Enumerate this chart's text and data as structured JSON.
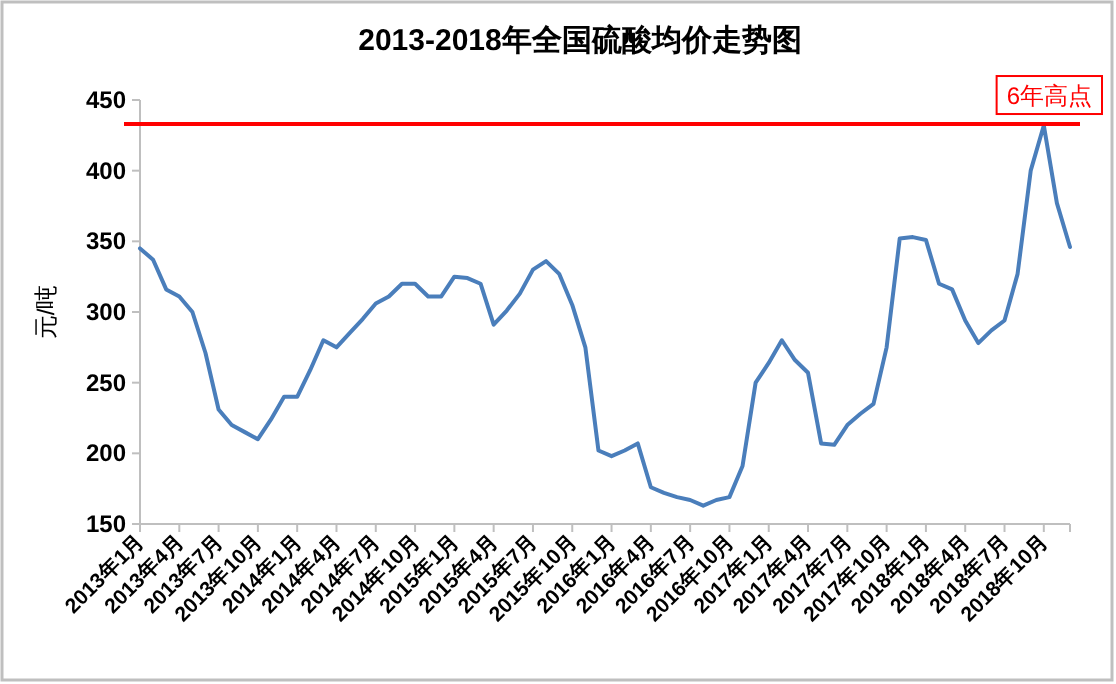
{
  "chart_data": {
    "type": "line",
    "title": "2013-2018年全国硫酸均价走势图",
    "ylabel": "元/吨",
    "categories": [
      "2013年1月",
      null,
      null,
      "2013年4月",
      null,
      null,
      "2013年7月",
      null,
      null,
      "2013年10月",
      null,
      null,
      "2014年1月",
      null,
      null,
      "2014年4月",
      null,
      null,
      "2014年7月",
      null,
      null,
      "2014年10月",
      null,
      null,
      "2015年1月",
      null,
      null,
      "2015年4月",
      null,
      null,
      "2015年7月",
      null,
      null,
      "2015年10月",
      null,
      null,
      "2016年1月",
      null,
      null,
      "2016年4月",
      null,
      null,
      "2016年7月",
      null,
      null,
      "2016年10月",
      null,
      null,
      "2017年1月",
      null,
      null,
      "2017年4月",
      null,
      null,
      "2017年7月",
      null,
      null,
      "2017年10月",
      null,
      null,
      "2018年1月",
      null,
      null,
      "2018年4月",
      null,
      null,
      "2018年7月",
      null,
      null,
      "2018年10月",
      null,
      null
    ],
    "series": [
      {
        "color": "#4a7ebb",
        "values": [
          345,
          337,
          316,
          311,
          300,
          271,
          231,
          220,
          215,
          210,
          224,
          240,
          240,
          259,
          280,
          275,
          285,
          295,
          306,
          311,
          320,
          320,
          311,
          311,
          325,
          324,
          320,
          291,
          301,
          313,
          330,
          336,
          327,
          305,
          275,
          202,
          198,
          202,
          207,
          176,
          172,
          169,
          167,
          163,
          167,
          169,
          191,
          250,
          264,
          280,
          266,
          257,
          207,
          206,
          220,
          228,
          235,
          275,
          352,
          353,
          351,
          320,
          316,
          294,
          278,
          287,
          294,
          327,
          400,
          432,
          377,
          346
        ]
      }
    ],
    "ylim": [
      150,
      450
    ],
    "yticks": [
      150,
      200,
      250,
      300,
      350,
      400,
      450
    ],
    "ref_lines": [
      {
        "axis": "y",
        "value": 433,
        "label": "6年高点",
        "color": "#ff0000"
      }
    ]
  }
}
